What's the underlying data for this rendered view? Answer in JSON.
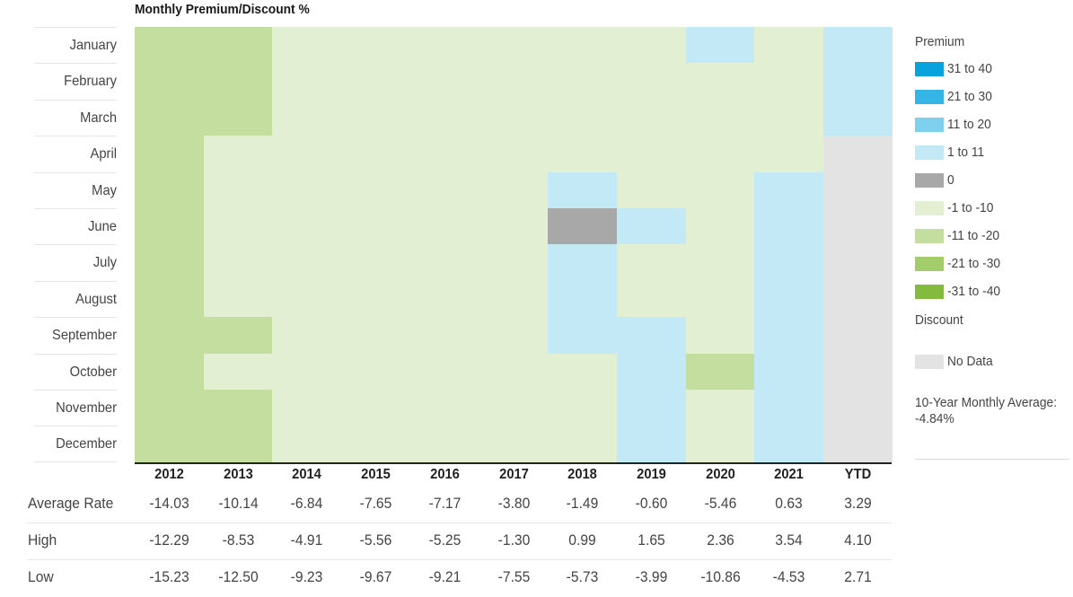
{
  "chart_data": {
    "type": "heatmap",
    "title": "Monthly Premium/Discount %",
    "months": [
      "January",
      "February",
      "March",
      "April",
      "May",
      "June",
      "July",
      "August",
      "September",
      "October",
      "November",
      "December"
    ],
    "columns": [
      "2012",
      "2013",
      "2014",
      "2015",
      "2016",
      "2017",
      "2018",
      "2019",
      "2020",
      "2021",
      "YTD"
    ],
    "bin_colors": {
      "31 to 40": "#0aa2dc",
      "21 to 30": "#35b5e5",
      "11 to 20": "#7fd0ef",
      "1 to 11": "#c3e9f7",
      "0": "#a8a8a8",
      "-1 to -10": "#e2efd3",
      "-11 to -20": "#c4de9f",
      "-21 to -30": "#a2cd6a",
      "-31 to -40": "#84bb3f",
      "No Data": "#e3e3e3"
    },
    "cells": {
      "2012": [
        "-11 to -20",
        "-11 to -20",
        "-11 to -20",
        "-11 to -20",
        "-11 to -20",
        "-11 to -20",
        "-11 to -20",
        "-11 to -20",
        "-11 to -20",
        "-11 to -20",
        "-11 to -20",
        "-11 to -20"
      ],
      "2013": [
        "-11 to -20",
        "-11 to -20",
        "-11 to -20",
        "-1 to -10",
        "-1 to -10",
        "-1 to -10",
        "-1 to -10",
        "-1 to -10",
        "-11 to -20",
        "-1 to -10",
        "-11 to -20",
        "-11 to -20"
      ],
      "2014": [
        "-1 to -10",
        "-1 to -10",
        "-1 to -10",
        "-1 to -10",
        "-1 to -10",
        "-1 to -10",
        "-1 to -10",
        "-1 to -10",
        "-1 to -10",
        "-1 to -10",
        "-1 to -10",
        "-1 to -10"
      ],
      "2015": [
        "-1 to -10",
        "-1 to -10",
        "-1 to -10",
        "-1 to -10",
        "-1 to -10",
        "-1 to -10",
        "-1 to -10",
        "-1 to -10",
        "-1 to -10",
        "-1 to -10",
        "-1 to -10",
        "-1 to -10"
      ],
      "2016": [
        "-1 to -10",
        "-1 to -10",
        "-1 to -10",
        "-1 to -10",
        "-1 to -10",
        "-1 to -10",
        "-1 to -10",
        "-1 to -10",
        "-1 to -10",
        "-1 to -10",
        "-1 to -10",
        "-1 to -10"
      ],
      "2017": [
        "-1 to -10",
        "-1 to -10",
        "-1 to -10",
        "-1 to -10",
        "-1 to -10",
        "-1 to -10",
        "-1 to -10",
        "-1 to -10",
        "-1 to -10",
        "-1 to -10",
        "-1 to -10",
        "-1 to -10"
      ],
      "2018": [
        "-1 to -10",
        "-1 to -10",
        "-1 to -10",
        "-1 to -10",
        "1 to 11",
        "0",
        "1 to 11",
        "1 to 11",
        "1 to 11",
        "-1 to -10",
        "-1 to -10",
        "-1 to -10"
      ],
      "2019": [
        "-1 to -10",
        "-1 to -10",
        "-1 to -10",
        "-1 to -10",
        "-1 to -10",
        "1 to 11",
        "-1 to -10",
        "-1 to -10",
        "1 to 11",
        "1 to 11",
        "1 to 11",
        "1 to 11"
      ],
      "2020": [
        "1 to 11",
        "-1 to -10",
        "-1 to -10",
        "-1 to -10",
        "-1 to -10",
        "-1 to -10",
        "-1 to -10",
        "-1 to -10",
        "-1 to -10",
        "-11 to -20",
        "-1 to -10",
        "-1 to -10"
      ],
      "2021": [
        "-1 to -10",
        "-1 to -10",
        "-1 to -10",
        "-1 to -10",
        "1 to 11",
        "1 to 11",
        "1 to 11",
        "1 to 11",
        "1 to 11",
        "1 to 11",
        "1 to 11",
        "1 to 11"
      ],
      "YTD": [
        "1 to 11",
        "1 to 11",
        "1 to 11",
        "No Data",
        "No Data",
        "No Data",
        "No Data",
        "No Data",
        "No Data",
        "No Data",
        "No Data",
        "No Data"
      ]
    },
    "stats": [
      {
        "label": "Average Rate",
        "values": [
          "-14.03",
          "-10.14",
          "-6.84",
          "-7.65",
          "-7.17",
          "-3.80",
          "-1.49",
          "-0.60",
          "-5.46",
          "0.63",
          "3.29"
        ]
      },
      {
        "label": "High",
        "values": [
          "-12.29",
          "-8.53",
          "-4.91",
          "-5.56",
          "-5.25",
          "-1.30",
          "0.99",
          "1.65",
          "2.36",
          "3.54",
          "4.10"
        ]
      },
      {
        "label": "Low",
        "values": [
          "-15.23",
          "-12.50",
          "-9.23",
          "-9.67",
          "-9.21",
          "-7.55",
          "-5.73",
          "-3.99",
          "-10.86",
          "-4.53",
          "2.71"
        ]
      }
    ],
    "legend": {
      "premium_label": "Premium",
      "discount_label": "Discount",
      "premium_items": [
        "31 to 40",
        "21 to 30",
        "11 to 20",
        "1 to 11",
        "0",
        "-1 to -10",
        "-11 to -20",
        "-21 to -30",
        "-31 to -40"
      ],
      "no_data_label": "No Data",
      "average_label": "10-Year Monthly Average:",
      "average_value": "-4.84%"
    }
  }
}
